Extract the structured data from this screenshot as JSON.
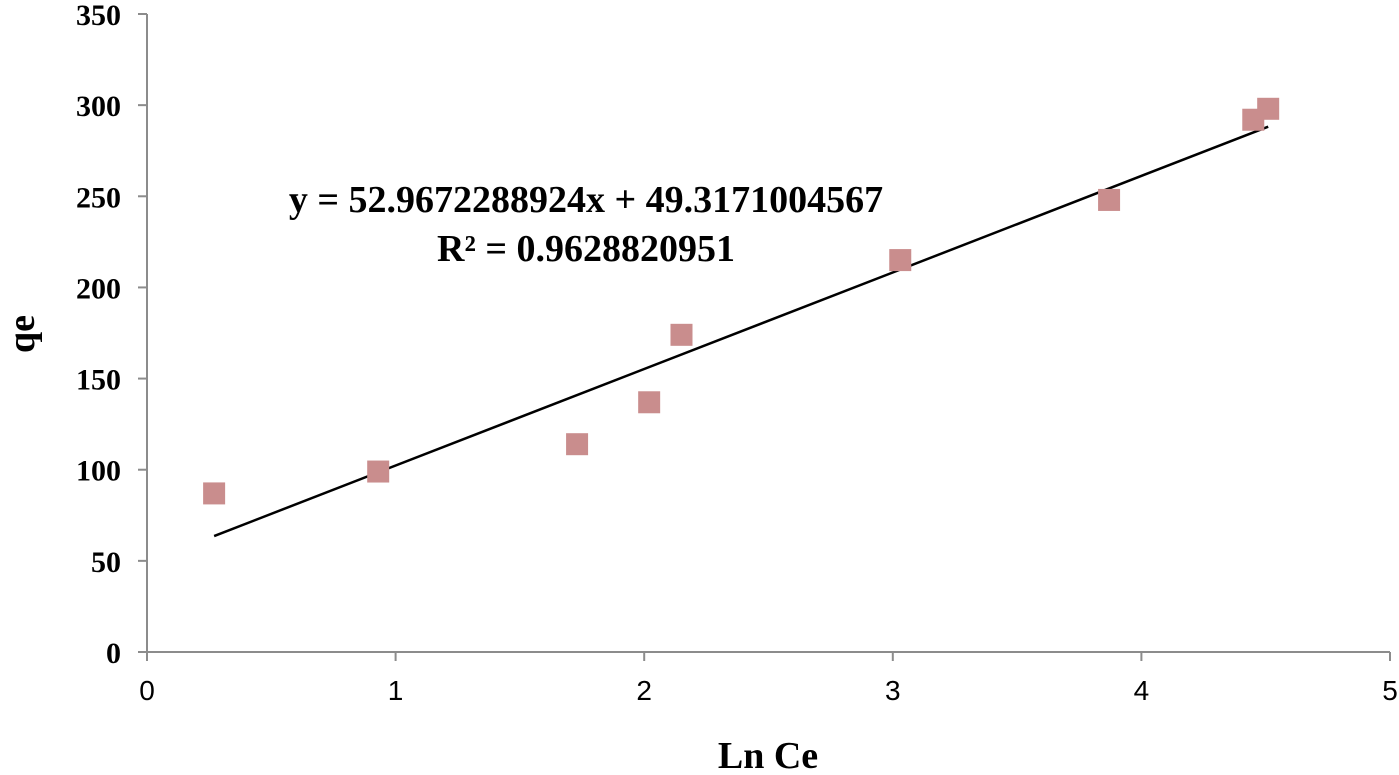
{
  "chart_data": {
    "type": "scatter",
    "xlabel": "Ln Ce",
    "ylabel": "qe",
    "xlim": [
      0,
      5
    ],
    "ylim": [
      0,
      350
    ],
    "xticks": [
      0,
      1,
      2,
      3,
      4,
      5
    ],
    "yticks": [
      0,
      50,
      100,
      150,
      200,
      250,
      300,
      350
    ],
    "grid": false,
    "legend": "none",
    "series": [
      {
        "marker": "square",
        "color": "#c98d8d",
        "points": [
          {
            "x": 0.27,
            "y": 87
          },
          {
            "x": 0.93,
            "y": 99
          },
          {
            "x": 1.73,
            "y": 114
          },
          {
            "x": 2.02,
            "y": 137
          },
          {
            "x": 2.15,
            "y": 174
          },
          {
            "x": 3.03,
            "y": 215
          },
          {
            "x": 3.87,
            "y": 248
          },
          {
            "x": 4.45,
            "y": 292
          },
          {
            "x": 4.51,
            "y": 298
          }
        ]
      }
    ],
    "trendline": {
      "slope": 52.9672288924,
      "intercept": 49.3171004567,
      "x_range": [
        0.27,
        4.51
      ],
      "color": "#000000"
    },
    "annotations": {
      "equation": "y = 52.9672288924x + 49.3171004567",
      "r_squared": "R² = 0.9628820951"
    }
  }
}
